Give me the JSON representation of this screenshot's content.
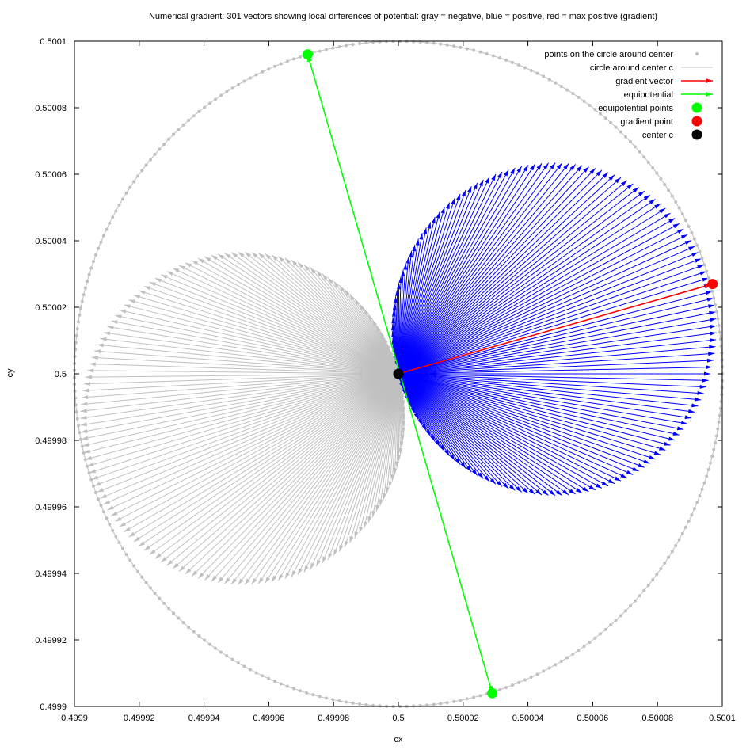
{
  "chart_data": {
    "type": "scatter",
    "title": "Numerical gradient: 301 vectors showing local differences of potential: gray = negative, blue = positive, red = max positive (gradient)",
    "xlabel": "cx",
    "ylabel": "cy",
    "xlim": [
      0.4999,
      0.5001
    ],
    "ylim": [
      0.4999,
      0.5001
    ],
    "x_ticks": [
      "0.4999",
      "0.49992",
      "0.49994",
      "0.49996",
      "0.49998",
      "0.5",
      "0.50002",
      "0.50004",
      "0.50006",
      "0.50008",
      "0.5001"
    ],
    "y_ticks": [
      "0.4999",
      "0.49992",
      "0.49994",
      "0.49996",
      "0.49998",
      "0.5",
      "0.50002",
      "0.50004",
      "0.50006",
      "0.50008",
      "0.5001"
    ],
    "grid": false,
    "legend_position": "top-right",
    "center": [
      0.5,
      0.5
    ],
    "circle_radius": 0.0001,
    "vector_count": 301,
    "gradient_point": [
      0.500097,
      0.500027
    ],
    "equipotential_points": [
      [
        0.499972,
        0.500096
      ],
      [
        0.500029,
        0.499904
      ]
    ],
    "colors": {
      "negative": "#c0c0c0",
      "positive": "#0000ff",
      "gradient": "#ff0000",
      "equipotential": "#00ff00",
      "center": "#000000",
      "circle": "#c0c0c0"
    },
    "legend": [
      {
        "label": "points on the circle around center",
        "kind": "dot",
        "color": "#c0c0c0"
      },
      {
        "label": "circle around center c",
        "kind": "line",
        "color": "#c0c0c0"
      },
      {
        "label": "gradient vector",
        "kind": "arrow",
        "color": "#ff0000"
      },
      {
        "label": "equipotential",
        "kind": "arrow",
        "color": "#00ff00"
      },
      {
        "label": "equipotential points",
        "kind": "bigdot",
        "color": "#00ff00"
      },
      {
        "label": "gradient point",
        "kind": "bigdot",
        "color": "#ff0000"
      },
      {
        "label": "center c",
        "kind": "bigdot",
        "color": "#000000"
      }
    ]
  }
}
